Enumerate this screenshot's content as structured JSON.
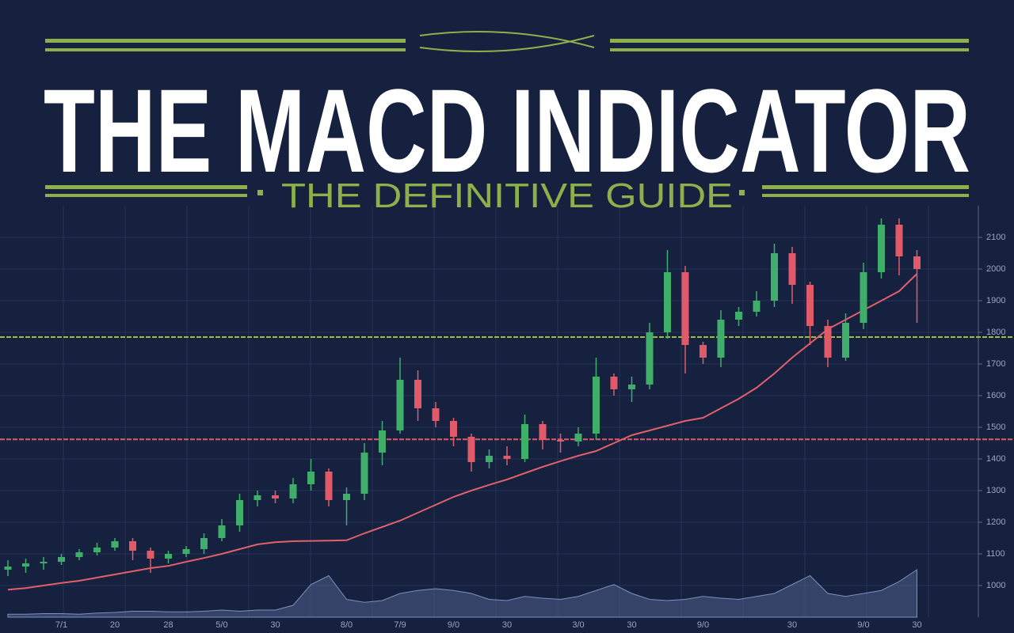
{
  "chart_data": {
    "type": "candlestick",
    "title": "THE MACD INDICATOR",
    "subtitle": "THE DEFINITIVE GUIDE",
    "categories": [
      null,
      null,
      null,
      "7/1",
      null,
      null,
      "20",
      null,
      null,
      "28",
      null,
      null,
      "5/0",
      null,
      null,
      "30",
      null,
      null,
      null,
      "8/0",
      null,
      null,
      "7/9",
      null,
      null,
      "9/0",
      null,
      null,
      "30",
      null,
      null,
      null,
      "3/0",
      null,
      null,
      "30",
      null,
      null,
      null,
      "9/0",
      null,
      null,
      null,
      null,
      "30",
      null,
      null,
      null,
      "9/0",
      null,
      null,
      "30"
    ],
    "open": [
      1050,
      1060,
      1070,
      1075,
      1090,
      1105,
      1120,
      1140,
      1110,
      1085,
      1100,
      1115,
      1150,
      1190,
      1270,
      1285,
      1275,
      1320,
      1360,
      1270,
      1290,
      1420,
      1490,
      1650,
      1560,
      1520,
      1470,
      1390,
      1410,
      1400,
      1510,
      1460,
      1455,
      1480,
      1660,
      1620,
      1635,
      1800,
      1990,
      1760,
      1720,
      1840,
      1865,
      1900,
      2050,
      1950,
      1820,
      1720,
      1830,
      1990,
      2140,
      2040
    ],
    "high": [
      1080,
      1085,
      1090,
      1100,
      1115,
      1135,
      1150,
      1150,
      1120,
      1110,
      1125,
      1165,
      1210,
      1290,
      1300,
      1300,
      1340,
      1400,
      1370,
      1310,
      1450,
      1520,
      1720,
      1680,
      1580,
      1530,
      1480,
      1430,
      1440,
      1540,
      1520,
      1480,
      1500,
      1720,
      1670,
      1660,
      1830,
      2060,
      2010,
      1770,
      1870,
      1880,
      1930,
      2080,
      2070,
      1960,
      1840,
      1860,
      2020,
      2160,
      2160,
      2060
    ],
    "low": [
      1030,
      1040,
      1050,
      1065,
      1080,
      1095,
      1110,
      1080,
      1040,
      1070,
      1090,
      1100,
      1140,
      1170,
      1250,
      1260,
      1260,
      1300,
      1250,
      1190,
      1270,
      1380,
      1480,
      1520,
      1500,
      1440,
      1360,
      1370,
      1380,
      1390,
      1430,
      1420,
      1440,
      1460,
      1600,
      1580,
      1620,
      1780,
      1670,
      1700,
      1690,
      1820,
      1850,
      1880,
      1890,
      1760,
      1690,
      1710,
      1810,
      1970,
      1980,
      1830
    ],
    "close": [
      1060,
      1070,
      1075,
      1090,
      1105,
      1120,
      1140,
      1110,
      1085,
      1100,
      1115,
      1150,
      1190,
      1270,
      1285,
      1275,
      1320,
      1360,
      1270,
      1290,
      1420,
      1490,
      1650,
      1560,
      1520,
      1470,
      1390,
      1410,
      1400,
      1510,
      1460,
      1455,
      1480,
      1660,
      1620,
      1635,
      1800,
      1990,
      1760,
      1720,
      1840,
      1865,
      1900,
      2050,
      1950,
      1820,
      1720,
      1830,
      1990,
      2140,
      2040,
      2000
    ],
    "up_color": "#3fae6a",
    "down_color": "#e05a6a",
    "ma": {
      "color": "#e0606a",
      "values": [
        987,
        992,
        1000,
        1008,
        1015,
        1025,
        1035,
        1045,
        1055,
        1062,
        1075,
        1087,
        1100,
        1115,
        1130,
        1137,
        1140,
        1141,
        1142,
        1143,
        1165,
        1185,
        1205,
        1230,
        1255,
        1280,
        1300,
        1318,
        1335,
        1355,
        1375,
        1393,
        1410,
        1425,
        1450,
        1475,
        1490,
        1505,
        1520,
        1530,
        1560,
        1590,
        1625,
        1670,
        1720,
        1765,
        1810,
        1840,
        1870,
        1900,
        1930,
        1985
      ]
    },
    "volume": {
      "color": "#5a6c9a",
      "ylim": [
        0,
        100
      ],
      "values": [
        5,
        5,
        6,
        6,
        5,
        7,
        8,
        10,
        10,
        9,
        9,
        10,
        12,
        10,
        12,
        12,
        20,
        55,
        70,
        30,
        25,
        28,
        40,
        45,
        48,
        45,
        40,
        30,
        28,
        35,
        32,
        30,
        35,
        45,
        55,
        40,
        30,
        28,
        30,
        35,
        32,
        30,
        35,
        40,
        55,
        70,
        40,
        35,
        40,
        45,
        60,
        80
      ]
    },
    "levels": [
      {
        "value": 1785,
        "color": "#9dbb3c"
      },
      {
        "value": 1462,
        "color": "#e05a6a"
      }
    ],
    "ylim": [
      900,
      2200
    ],
    "yticks": [
      1000,
      1100,
      1200,
      1300,
      1400,
      1500,
      1600,
      1700,
      1800,
      1900,
      2000,
      2100
    ],
    "grid": true
  }
}
